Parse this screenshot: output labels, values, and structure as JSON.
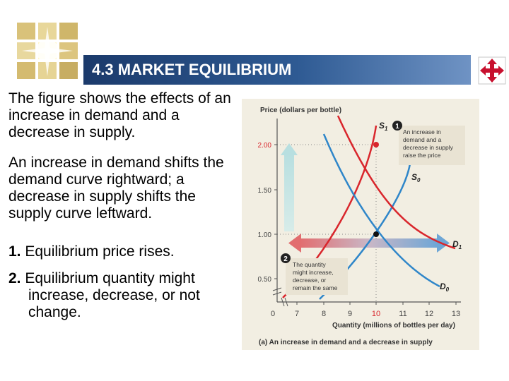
{
  "slide": {
    "title": "4.3 MARKET EQUILIBRIUM",
    "paragraphs": [
      "The figure shows the effects of an increase in demand and a decrease in supply.",
      "An increase in demand shifts the demand curve rightward; a decrease in supply shifts the supply curve leftward."
    ],
    "items": [
      {
        "num": "1.",
        "text": "Equilibrium price rises."
      },
      {
        "num": "2.",
        "text": "Equilibrium quantity might increase, decrease, or not change."
      }
    ]
  },
  "figure": {
    "y_axis_label": "Price (dollars per bottle)",
    "x_axis_label": "Quantity (millions of bottles per day)",
    "caption": "(a) An increase in demand and a decrease in supply",
    "y_ticks": [
      "0.50",
      "1.00",
      "1.50",
      "2.00"
    ],
    "x_ticks": [
      "0",
      "7",
      "8",
      "9",
      "10",
      "11",
      "12",
      "13"
    ],
    "curve_labels": {
      "s1": "S",
      "s1_sub": "1",
      "s0": "S",
      "s0_sub": "0",
      "d1": "D",
      "d1_sub": "1",
      "d0": "D",
      "d0_sub": "0"
    },
    "callout1": {
      "num": "1",
      "lines": [
        "An increase in",
        "demand and a",
        "decrease in supply",
        "raise the price"
      ]
    },
    "callout2": {
      "num": "2",
      "lines": [
        "The quantity",
        "might increase,",
        "decrease, or",
        "remain the same"
      ]
    },
    "colors": {
      "supply": "#2f86c9",
      "demand": "#d9262c",
      "highlight_price": "#d9262c",
      "panel": "#f2eee2"
    }
  }
}
